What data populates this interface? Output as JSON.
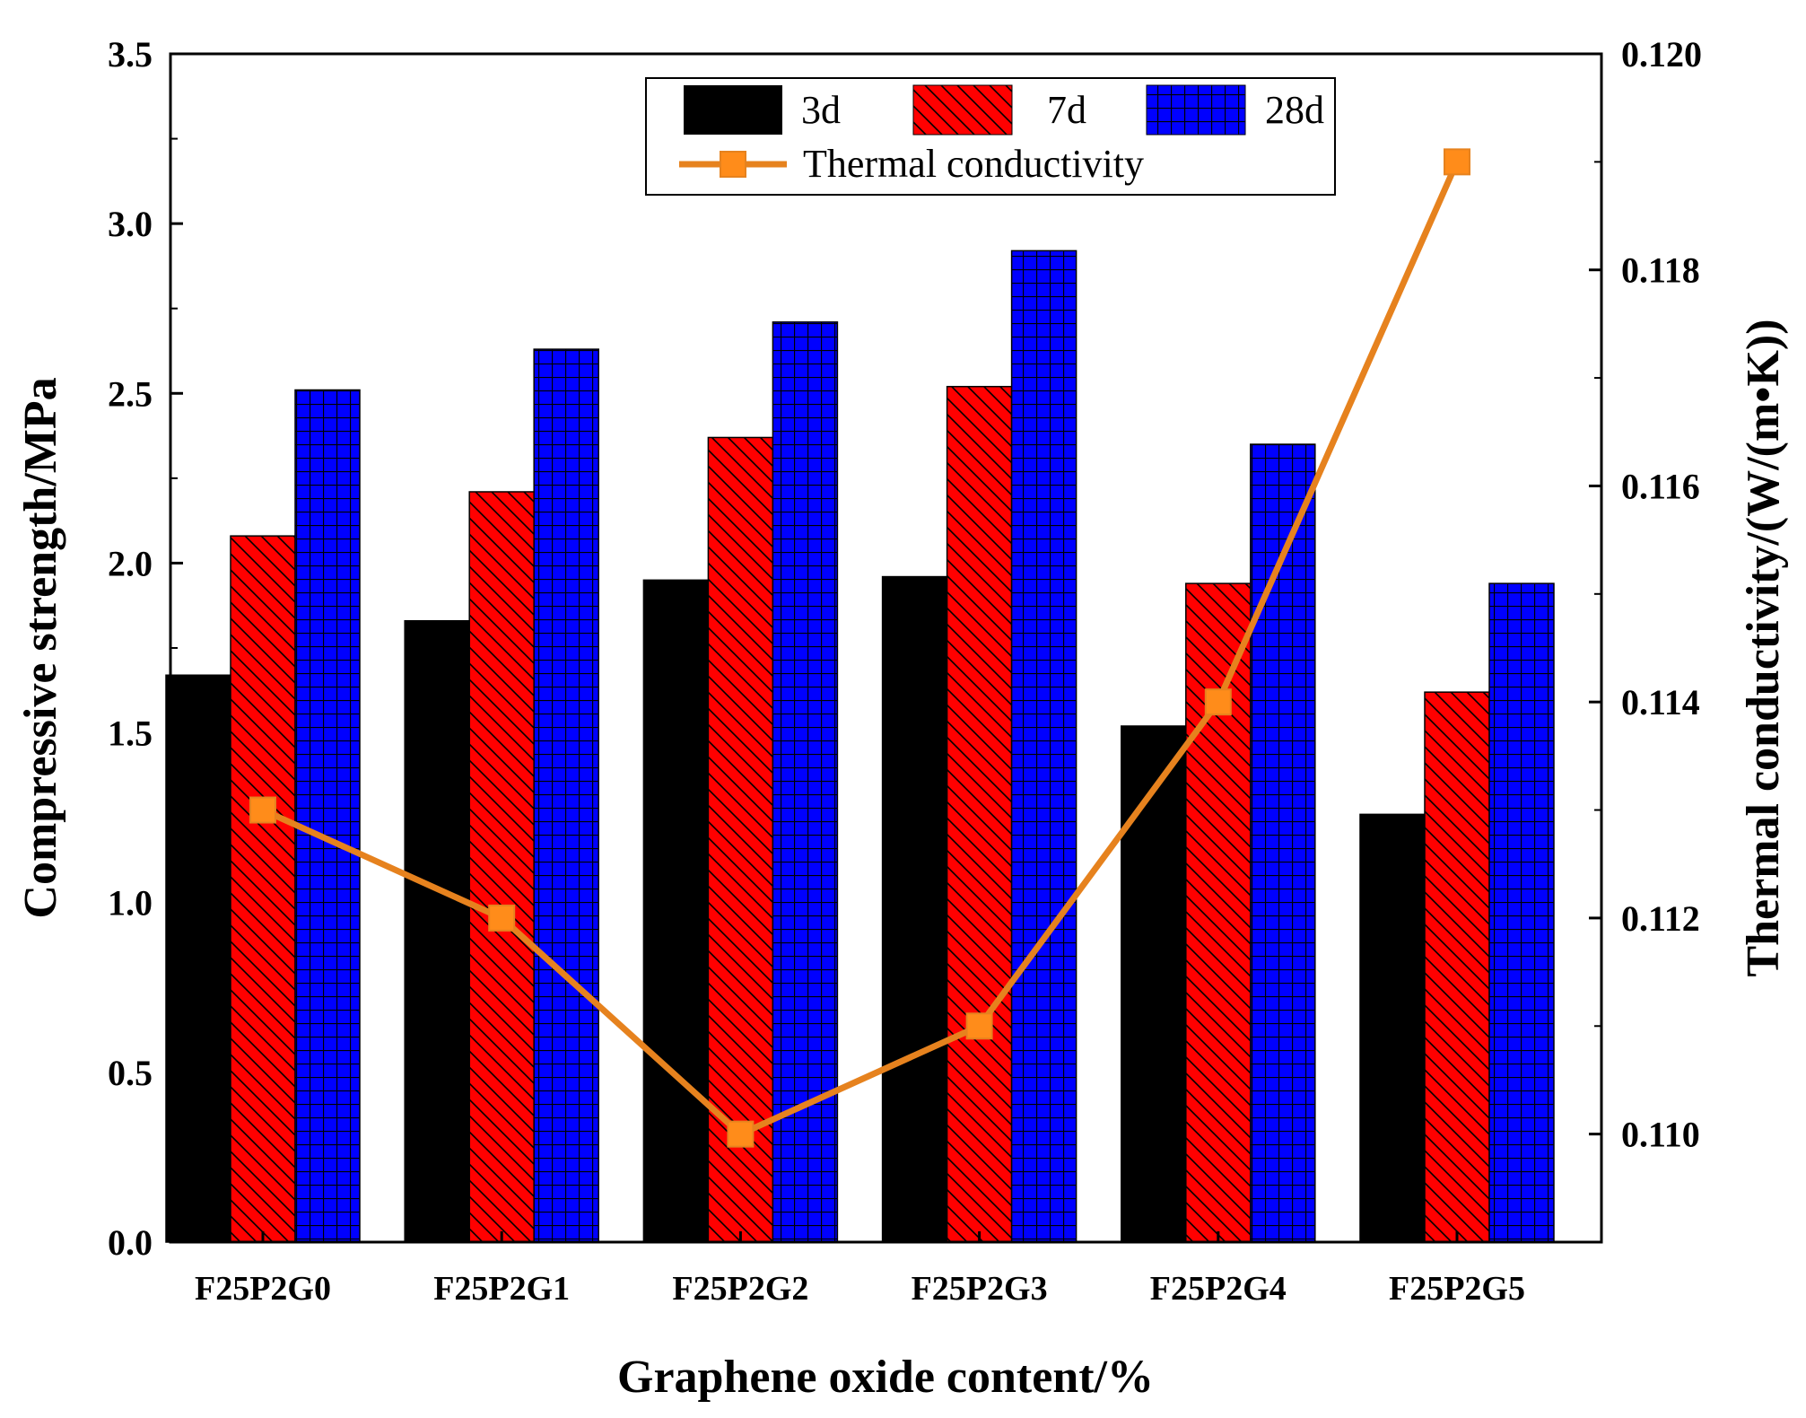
{
  "chart_data": {
    "type": "bar",
    "title": "",
    "xlabel": "Graphene oxide content/%",
    "ylabel": "Compressive strength/MPa",
    "y2label": "Thermal conductivity/(W/(m•K))",
    "categories": [
      "F25P2G0",
      "F25P2G1",
      "F25P2G2",
      "F25P2G3",
      "F25P2G4",
      "F25P2G5"
    ],
    "ylim": [
      0,
      3.5
    ],
    "yticks": [
      "0.0",
      "0.5",
      "1.0",
      "1.5",
      "2.0",
      "2.5",
      "3.0",
      "3.5"
    ],
    "y2lim": [
      0.109,
      0.12
    ],
    "y2ticks": [
      "0.110",
      "0.112",
      "0.114",
      "0.116",
      "0.118",
      "0.120"
    ],
    "series": [
      {
        "name": "3d",
        "type": "bar",
        "axis": "left",
        "color": "#000000",
        "pattern": "solid",
        "values": [
          1.67,
          1.83,
          1.95,
          1.96,
          1.52,
          1.26
        ]
      },
      {
        "name": "7d",
        "type": "bar",
        "axis": "left",
        "color": "#ff0000",
        "pattern": "diagonal",
        "values": [
          2.08,
          2.21,
          2.37,
          2.52,
          1.94,
          1.62
        ]
      },
      {
        "name": "28d",
        "type": "bar",
        "axis": "left",
        "color": "#0000ff",
        "pattern": "grid",
        "values": [
          2.51,
          2.63,
          2.71,
          2.92,
          2.35,
          1.94
        ]
      },
      {
        "name": "Thermal conductivity",
        "type": "line",
        "axis": "right",
        "color": "#e6821e",
        "marker": "square",
        "values": [
          0.113,
          0.112,
          0.11,
          0.111,
          0.114,
          0.119
        ]
      }
    ],
    "legend": "top-center",
    "grid": false
  }
}
